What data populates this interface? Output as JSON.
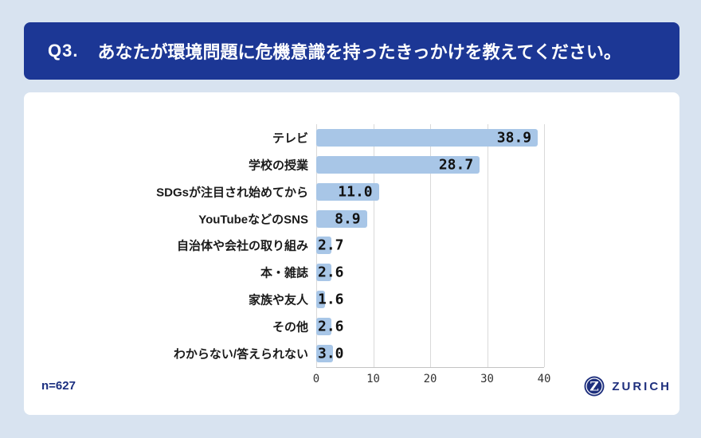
{
  "theme": {
    "page_bg": "#d8e3f0",
    "header_bg": "#1c3795",
    "header_text": "#ffffff",
    "card_bg": "#ffffff",
    "bar_fill": "#a8c6e7",
    "grid_color": "#d9d9d9",
    "axis_color": "#c3c3c3",
    "brand_navy": "#1e2f7d",
    "n_color": "#1b2f80"
  },
  "header": {
    "q_label": "Q3.",
    "q_text": "あなたが環境問題に危機意識を持ったきっかけを教えてください。"
  },
  "footer": {
    "sample_size": "n=627",
    "brand_name": "ZURICH",
    "brand_letter": "Z"
  },
  "chart_data": {
    "type": "bar",
    "orientation": "horizontal",
    "title": "あなたが環境問題に危機意識を持ったきっかけ",
    "categories": [
      "テレビ",
      "学校の授業",
      "SDGsが注目され始めてから",
      "YouTubeなどのSNS",
      "自治体や会社の取り組み",
      "本・雑誌",
      "家族や友人",
      "その他",
      "わからない/答えられない"
    ],
    "values": [
      38.9,
      28.7,
      11.0,
      8.9,
      2.7,
      2.6,
      1.6,
      2.6,
      3.0
    ],
    "value_labels": [
      "38.9",
      "28.7",
      "11.0",
      "8.9",
      "2.7",
      "2.6",
      "1.6",
      "2.6",
      "3.0"
    ],
    "xlim": [
      0,
      40
    ],
    "xticks": [
      0,
      10,
      20,
      30,
      40
    ],
    "xtick_labels": [
      "0",
      "10",
      "20",
      "30",
      "40"
    ],
    "grid": true,
    "legend": false,
    "unit": "%"
  }
}
